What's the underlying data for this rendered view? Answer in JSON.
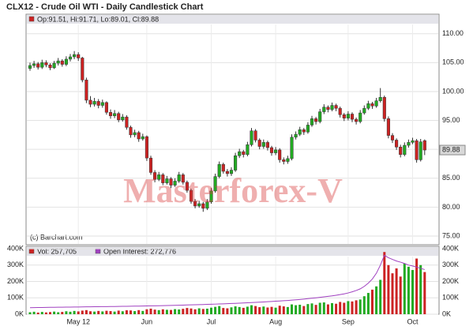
{
  "chart_data": [
    {
      "type": "candlestick",
      "title": "CLX12 - Crude Oil WTI - Daily Candlestick Chart",
      "legend_text": "Op:91.51, Hi:91.71, Lo:89.01, Cl:89.88",
      "source": "(c) Barchart.com",
      "watermark": "Masterforex-V",
      "up_color": "#22aa22",
      "down_color": "#cc2222",
      "open": [
        104.0,
        104.5,
        104.8,
        104.2,
        105.0,
        104.6,
        104.1,
        104.9,
        105.3,
        104.7,
        105.6,
        106.0,
        106.4,
        105.8,
        102.0,
        98.5,
        97.8,
        98.3,
        97.6,
        98.1,
        96.4,
        95.8,
        96.2,
        95.1,
        95.6,
        93.8,
        92.5,
        92.9,
        91.8,
        92.2,
        88.5,
        86.0,
        84.8,
        85.6,
        84.2,
        84.9,
        83.8,
        84.5,
        85.6,
        84.3,
        82.9,
        81.0,
        80.2,
        80.6,
        79.8,
        80.9,
        82.8,
        85.3,
        87.4,
        86.2,
        85.8,
        86.4,
        88.9,
        89.6,
        89.1,
        90.8,
        93.2,
        91.6,
        90.5,
        91.2,
        90.3,
        89.4,
        89.9,
        88.2,
        87.9,
        88.4,
        92.1,
        92.6,
        93.4,
        93.0,
        94.2,
        95.3,
        94.8,
        96.5,
        97.3,
        96.9,
        97.6,
        97.1,
        96.0,
        95.4,
        96.1,
        95.2,
        94.8,
        96.3,
        97.1,
        97.9,
        97.5,
        98.4,
        99.0,
        95.3,
        92.4,
        91.6,
        90.4,
        89.1,
        90.7,
        91.2,
        91.5,
        88.2,
        91.51
      ],
      "high": [
        105.0,
        105.3,
        105.1,
        105.5,
        105.4,
        104.9,
        105.3,
        105.8,
        105.6,
        106.1,
        106.5,
        107.0,
        106.8,
        106.0,
        102.4,
        99.2,
        98.9,
        98.7,
        98.6,
        98.3,
        96.9,
        96.8,
        96.5,
        96.1,
        95.9,
        94.1,
        93.4,
        93.2,
        92.7,
        92.4,
        88.9,
        86.4,
        86.1,
        85.9,
        85.4,
        85.2,
        85.0,
        86.1,
        85.9,
        84.6,
        83.2,
        81.4,
        81.1,
        80.9,
        81.4,
        83.3,
        85.8,
        87.9,
        87.7,
        86.6,
        86.9,
        89.4,
        90.1,
        89.9,
        91.3,
        93.7,
        93.5,
        91.9,
        91.7,
        91.5,
        90.6,
        90.4,
        90.2,
        88.6,
        88.9,
        92.6,
        93.1,
        93.9,
        93.7,
        94.7,
        95.8,
        95.6,
        97.0,
        97.8,
        97.6,
        98.1,
        97.9,
        97.4,
        96.3,
        96.6,
        96.4,
        95.5,
        96.8,
        97.6,
        98.4,
        98.2,
        98.9,
        100.6,
        99.3,
        95.7,
        92.8,
        91.9,
        90.8,
        91.2,
        91.7,
        92.0,
        91.8,
        91.8,
        91.71
      ],
      "low": [
        103.6,
        104.1,
        103.8,
        103.9,
        104.2,
        103.7,
        103.9,
        104.5,
        104.3,
        104.4,
        105.2,
        105.6,
        105.3,
        101.6,
        98.0,
        97.3,
        97.4,
        97.1,
        97.2,
        96.0,
        95.3,
        95.4,
        94.7,
        94.8,
        93.4,
        92.0,
        92.1,
        91.3,
        91.5,
        88.0,
        85.6,
        84.3,
        84.5,
        83.8,
        83.9,
        83.3,
        83.5,
        84.2,
        83.9,
        82.5,
        80.6,
        79.8,
        79.9,
        79.2,
        79.5,
        80.6,
        82.5,
        85.0,
        85.8,
        85.3,
        85.4,
        86.1,
        88.5,
        88.6,
        88.8,
        90.5,
        91.2,
        90.0,
        90.1,
        89.8,
        88.9,
        89.0,
        87.7,
        87.4,
        87.5,
        88.1,
        91.7,
        92.3,
        92.5,
        92.7,
        93.9,
        94.3,
        94.5,
        96.1,
        96.4,
        96.6,
        96.6,
        95.5,
        94.9,
        95.0,
        94.7,
        94.3,
        94.5,
        96.0,
        96.8,
        97.0,
        97.2,
        98.1,
        94.8,
        91.9,
        91.1,
        89.9,
        88.6,
        88.8,
        90.3,
        90.9,
        87.7,
        87.9,
        89.01
      ],
      "close": [
        104.5,
        104.8,
        104.2,
        105.0,
        104.6,
        104.1,
        104.9,
        105.3,
        104.7,
        105.6,
        106.0,
        106.4,
        105.8,
        102.0,
        98.5,
        97.8,
        98.3,
        97.6,
        98.1,
        96.4,
        95.8,
        96.2,
        95.1,
        95.6,
        93.8,
        92.5,
        92.9,
        91.8,
        92.2,
        88.5,
        86.0,
        84.8,
        85.6,
        84.2,
        84.9,
        83.8,
        84.5,
        85.6,
        84.3,
        82.9,
        81.0,
        80.2,
        80.6,
        79.8,
        80.9,
        82.8,
        85.3,
        87.4,
        86.2,
        85.8,
        86.4,
        88.9,
        89.6,
        89.1,
        90.8,
        93.2,
        91.6,
        90.5,
        91.2,
        90.3,
        89.4,
        89.9,
        88.2,
        87.9,
        88.4,
        92.1,
        92.6,
        93.4,
        93.0,
        94.2,
        95.3,
        94.8,
        96.5,
        97.3,
        96.9,
        97.6,
        97.1,
        96.0,
        95.4,
        96.1,
        95.2,
        94.8,
        96.3,
        97.1,
        97.9,
        97.5,
        98.4,
        99.0,
        95.3,
        92.4,
        91.6,
        90.4,
        89.1,
        90.7,
        91.2,
        91.5,
        88.2,
        91.3,
        89.88
      ],
      "ylim": [
        73.5,
        111.6
      ],
      "yticks": [
        {
          "value": 75,
          "label": "75.00"
        },
        {
          "value": 80,
          "label": "80.00"
        },
        {
          "value": 85,
          "label": "85.00"
        },
        {
          "value": 90,
          "label": "90.00"
        },
        {
          "value": 95,
          "label": "95.00"
        },
        {
          "value": 100,
          "label": "100.00"
        },
        {
          "value": 105,
          "label": "105.00"
        },
        {
          "value": 110,
          "label": "110.00"
        }
      ],
      "grid": true
    },
    {
      "type": "bar",
      "categories": [
        null,
        null,
        null,
        null,
        null,
        null,
        null,
        null,
        null,
        null,
        null,
        null,
        "May 12",
        null,
        null,
        null,
        null,
        null,
        null,
        null,
        null,
        null,
        null,
        null,
        null,
        null,
        null,
        null,
        null,
        "Jun",
        null,
        null,
        null,
        null,
        null,
        null,
        null,
        null,
        null,
        null,
        null,
        null,
        null,
        null,
        null,
        "Jul",
        null,
        null,
        null,
        null,
        null,
        null,
        null,
        null,
        null,
        null,
        null,
        null,
        null,
        null,
        null,
        "Aug",
        null,
        null,
        null,
        null,
        null,
        null,
        null,
        null,
        null,
        null,
        null,
        null,
        null,
        null,
        null,
        null,
        null,
        "Sep",
        null,
        null,
        null,
        null,
        null,
        null,
        null,
        null,
        null,
        null,
        null,
        null,
        null,
        null,
        null,
        "Oct",
        null,
        null,
        null
      ],
      "up_color": "#22aa22",
      "down_color": "#cc2222",
      "series": [
        {
          "name": "Vol: 257,705",
          "color": "#cc2222",
          "values": [
            12000,
            15000,
            10000,
            14000,
            11000,
            13000,
            16000,
            12000,
            14000,
            18000,
            15000,
            20000,
            17000,
            22000,
            25000,
            18000,
            16000,
            20000,
            17000,
            21000,
            19000,
            16000,
            22000,
            18000,
            24000,
            23000,
            19000,
            25000,
            20000,
            30000,
            34000,
            28000,
            25000,
            30000,
            27000,
            26000,
            31000,
            29000,
            33000,
            38000,
            35000,
            30000,
            36000,
            32000,
            34000,
            40000,
            45000,
            50000,
            38000,
            36000,
            42000,
            48000,
            44000,
            39000,
            46000,
            55000,
            50000,
            43000,
            47000,
            41000,
            45000,
            40000,
            52000,
            48000,
            44000,
            60000,
            55000,
            58000,
            50000,
            62000,
            66000,
            57000,
            70000,
            72000,
            60000,
            68000,
            64000,
            75000,
            70000,
            80000,
            78000,
            85000,
            90000,
            110000,
            130000,
            150000,
            170000,
            210000,
            380000,
            300000,
            250000,
            280000,
            230000,
            310000,
            290000,
            270000,
            340000,
            300000,
            257705
          ]
        },
        {
          "name": "Open Interest: 272,776",
          "color": "#a040c0",
          "values": [
            40000,
            40500,
            41000,
            41200,
            41500,
            42000,
            42300,
            42600,
            43000,
            43300,
            43600,
            44000,
            44300,
            44600,
            45000,
            45300,
            45600,
            46000,
            46300,
            46600,
            47000,
            47300,
            47600,
            48000,
            48400,
            48800,
            49200,
            49600,
            50000,
            50500,
            51000,
            51500,
            52000,
            52600,
            53200,
            53800,
            54400,
            55000,
            55700,
            56400,
            57100,
            57800,
            58500,
            59300,
            60100,
            60900,
            61800,
            62700,
            63600,
            64600,
            65600,
            66600,
            67700,
            68800,
            70000,
            71200,
            72400,
            73700,
            75000,
            76400,
            77800,
            79300,
            80800,
            82400,
            84000,
            86000,
            88000,
            90000,
            92500,
            95000,
            97500,
            100000,
            103000,
            106000,
            109000,
            112000,
            116000,
            120000,
            124000,
            130000,
            137000,
            145000,
            155000,
            170000,
            190000,
            215000,
            250000,
            300000,
            360000,
            345000,
            335000,
            325000,
            318000,
            310000,
            300000,
            295000,
            288000,
            280000,
            272776
          ]
        }
      ],
      "ylim": [
        0,
        410000
      ],
      "yticks": [
        {
          "value": 0,
          "label": "0K"
        },
        {
          "value": 100000,
          "label": "100K"
        },
        {
          "value": 200000,
          "label": "200K"
        },
        {
          "value": 300000,
          "label": "300K"
        },
        {
          "value": 400000,
          "label": "400K"
        }
      ],
      "grid": true
    }
  ]
}
